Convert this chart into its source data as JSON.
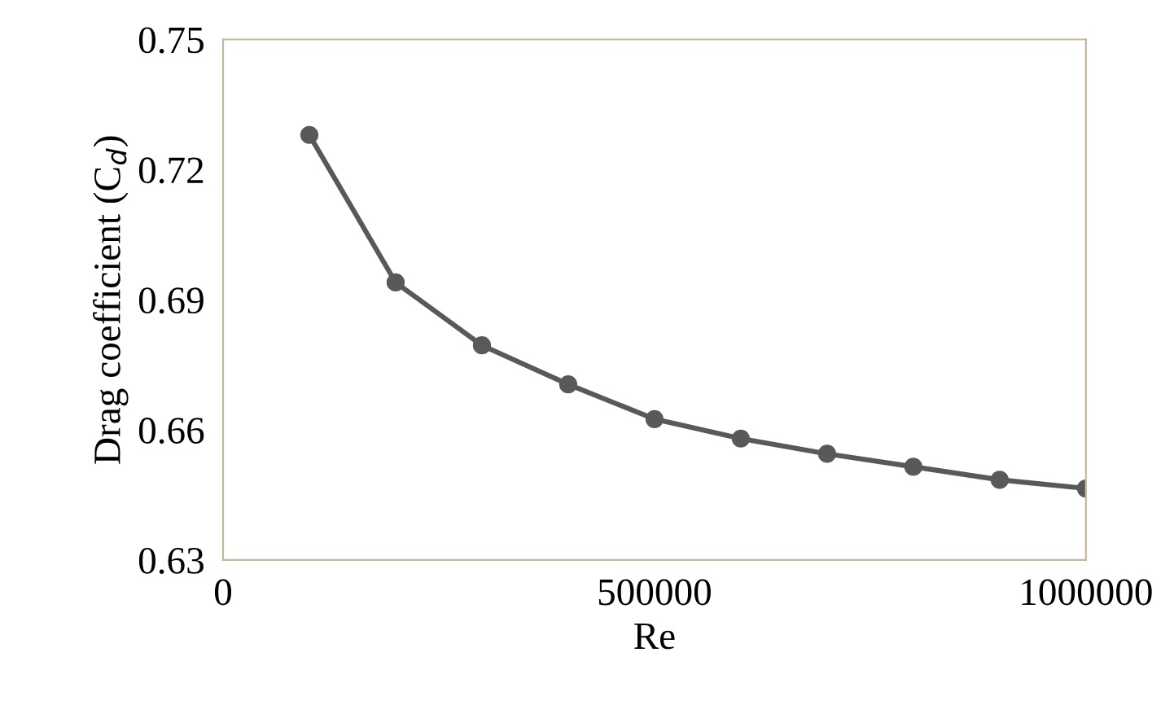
{
  "chart_data": {
    "type": "line",
    "xlabel": "Re",
    "ylabel": "Drag coefficient (C$_{d}$)",
    "x": [
      100000,
      200000,
      300000,
      400000,
      500000,
      600000,
      700000,
      800000,
      900000,
      1000000
    ],
    "series": [
      {
        "color": "#595959",
        "values": [
          0.728,
          0.694,
          0.6795,
          0.6705,
          0.6625,
          0.658,
          0.6545,
          0.6515,
          0.6485,
          0.6465
        ]
      }
    ],
    "xlim": [
      0,
      1000000
    ],
    "xticks": [
      0,
      500000,
      1000000
    ],
    "ylim": [
      0.63,
      0.75
    ],
    "yticks": [
      0.63,
      0.66,
      0.69,
      0.72,
      0.75
    ],
    "grid": false,
    "legend": false,
    "marker": "circle",
    "line_style": "solid"
  }
}
